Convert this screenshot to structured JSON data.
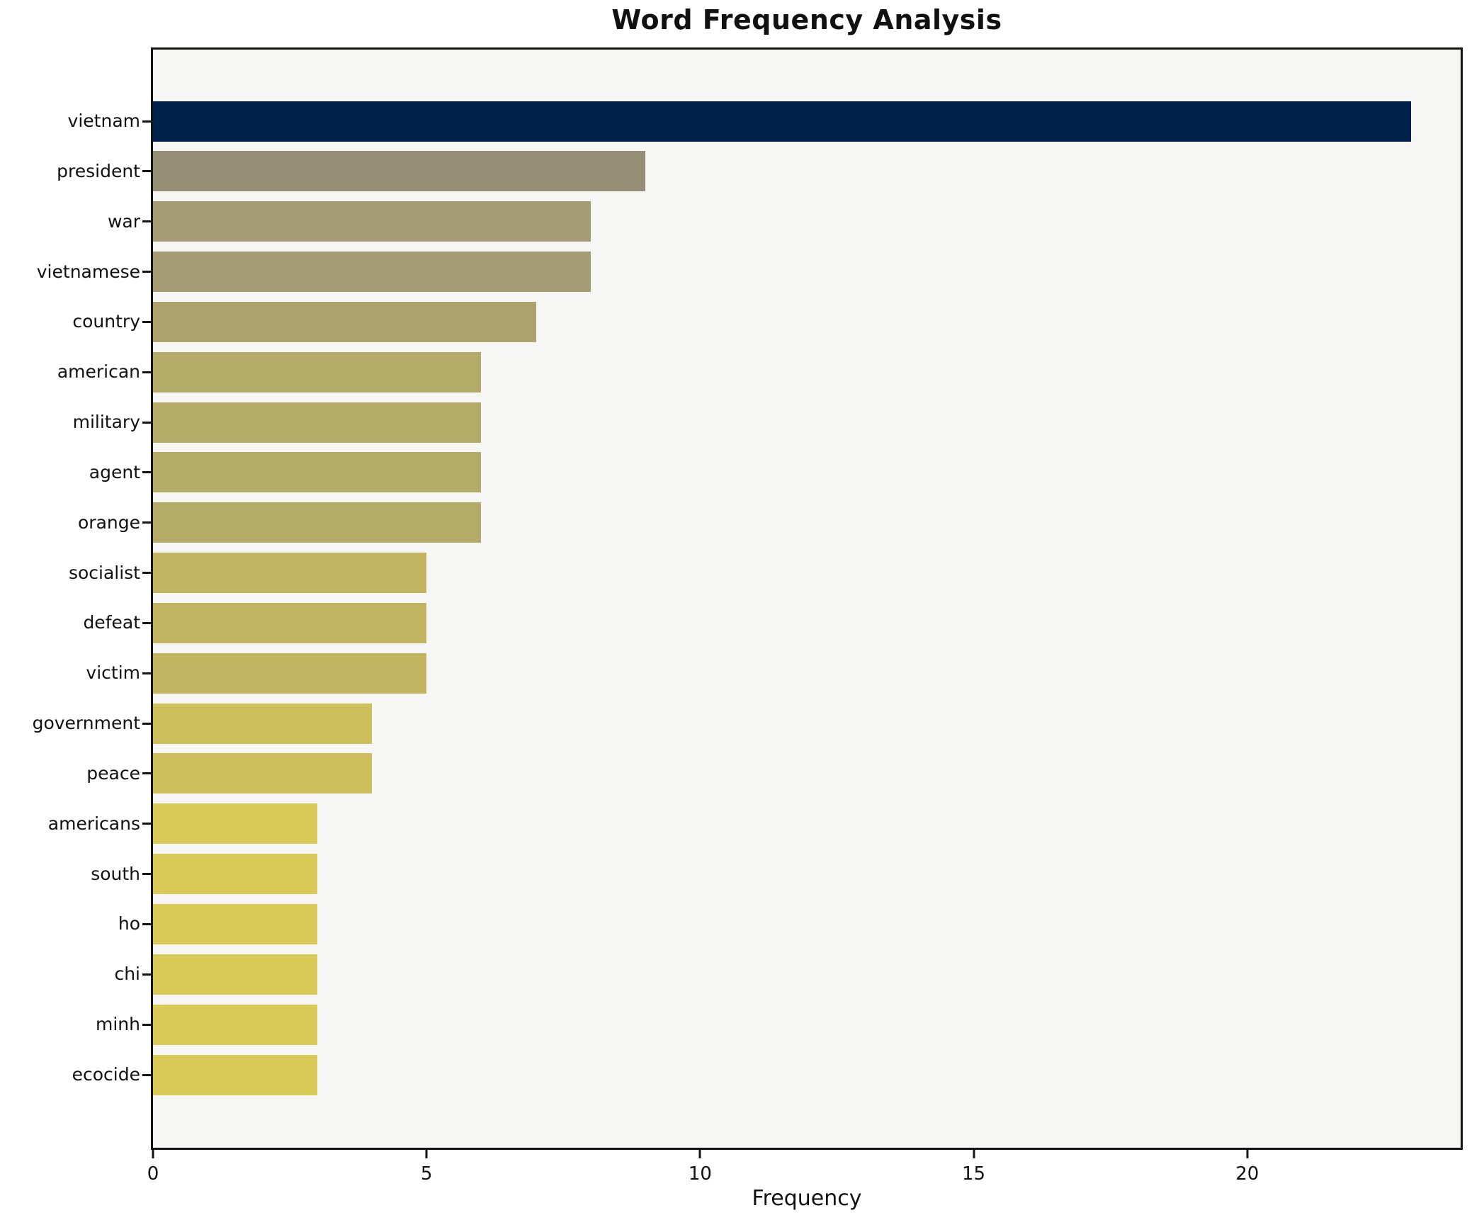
{
  "chart_data": {
    "type": "bar",
    "orientation": "horizontal",
    "title": "Word Frequency Analysis",
    "xlabel": "Frequency",
    "ylabel": "",
    "categories": [
      "vietnam",
      "president",
      "war",
      "vietnamese",
      "country",
      "american",
      "military",
      "agent",
      "orange",
      "socialist",
      "defeat",
      "victim",
      "government",
      "peace",
      "americans",
      "south",
      "ho",
      "chi",
      "minh",
      "ecocide"
    ],
    "values": [
      23,
      9,
      8,
      8,
      7,
      6,
      6,
      6,
      6,
      5,
      5,
      5,
      4,
      4,
      3,
      3,
      3,
      3,
      3,
      3
    ],
    "bar_colors": [
      "#00234d",
      "#958f76",
      "#a39c74",
      "#a39c74",
      "#aba26e",
      "#b5ab69",
      "#b5ab69",
      "#b5ab69",
      "#b5ab69",
      "#c2b562",
      "#c2b562",
      "#c2b562",
      "#cdc05c",
      "#cdc05c",
      "#d9c956",
      "#d9c956",
      "#d9c956",
      "#d9c956",
      "#d9c956",
      "#d9c956"
    ],
    "xticks": [
      0,
      5,
      10,
      15,
      20
    ],
    "xlim": [
      0,
      23.9
    ],
    "grid": false,
    "legend": null,
    "plot_bg": "#f6f6f5",
    "figure_bg": "#ffffff",
    "spine_color": "#141414"
  }
}
